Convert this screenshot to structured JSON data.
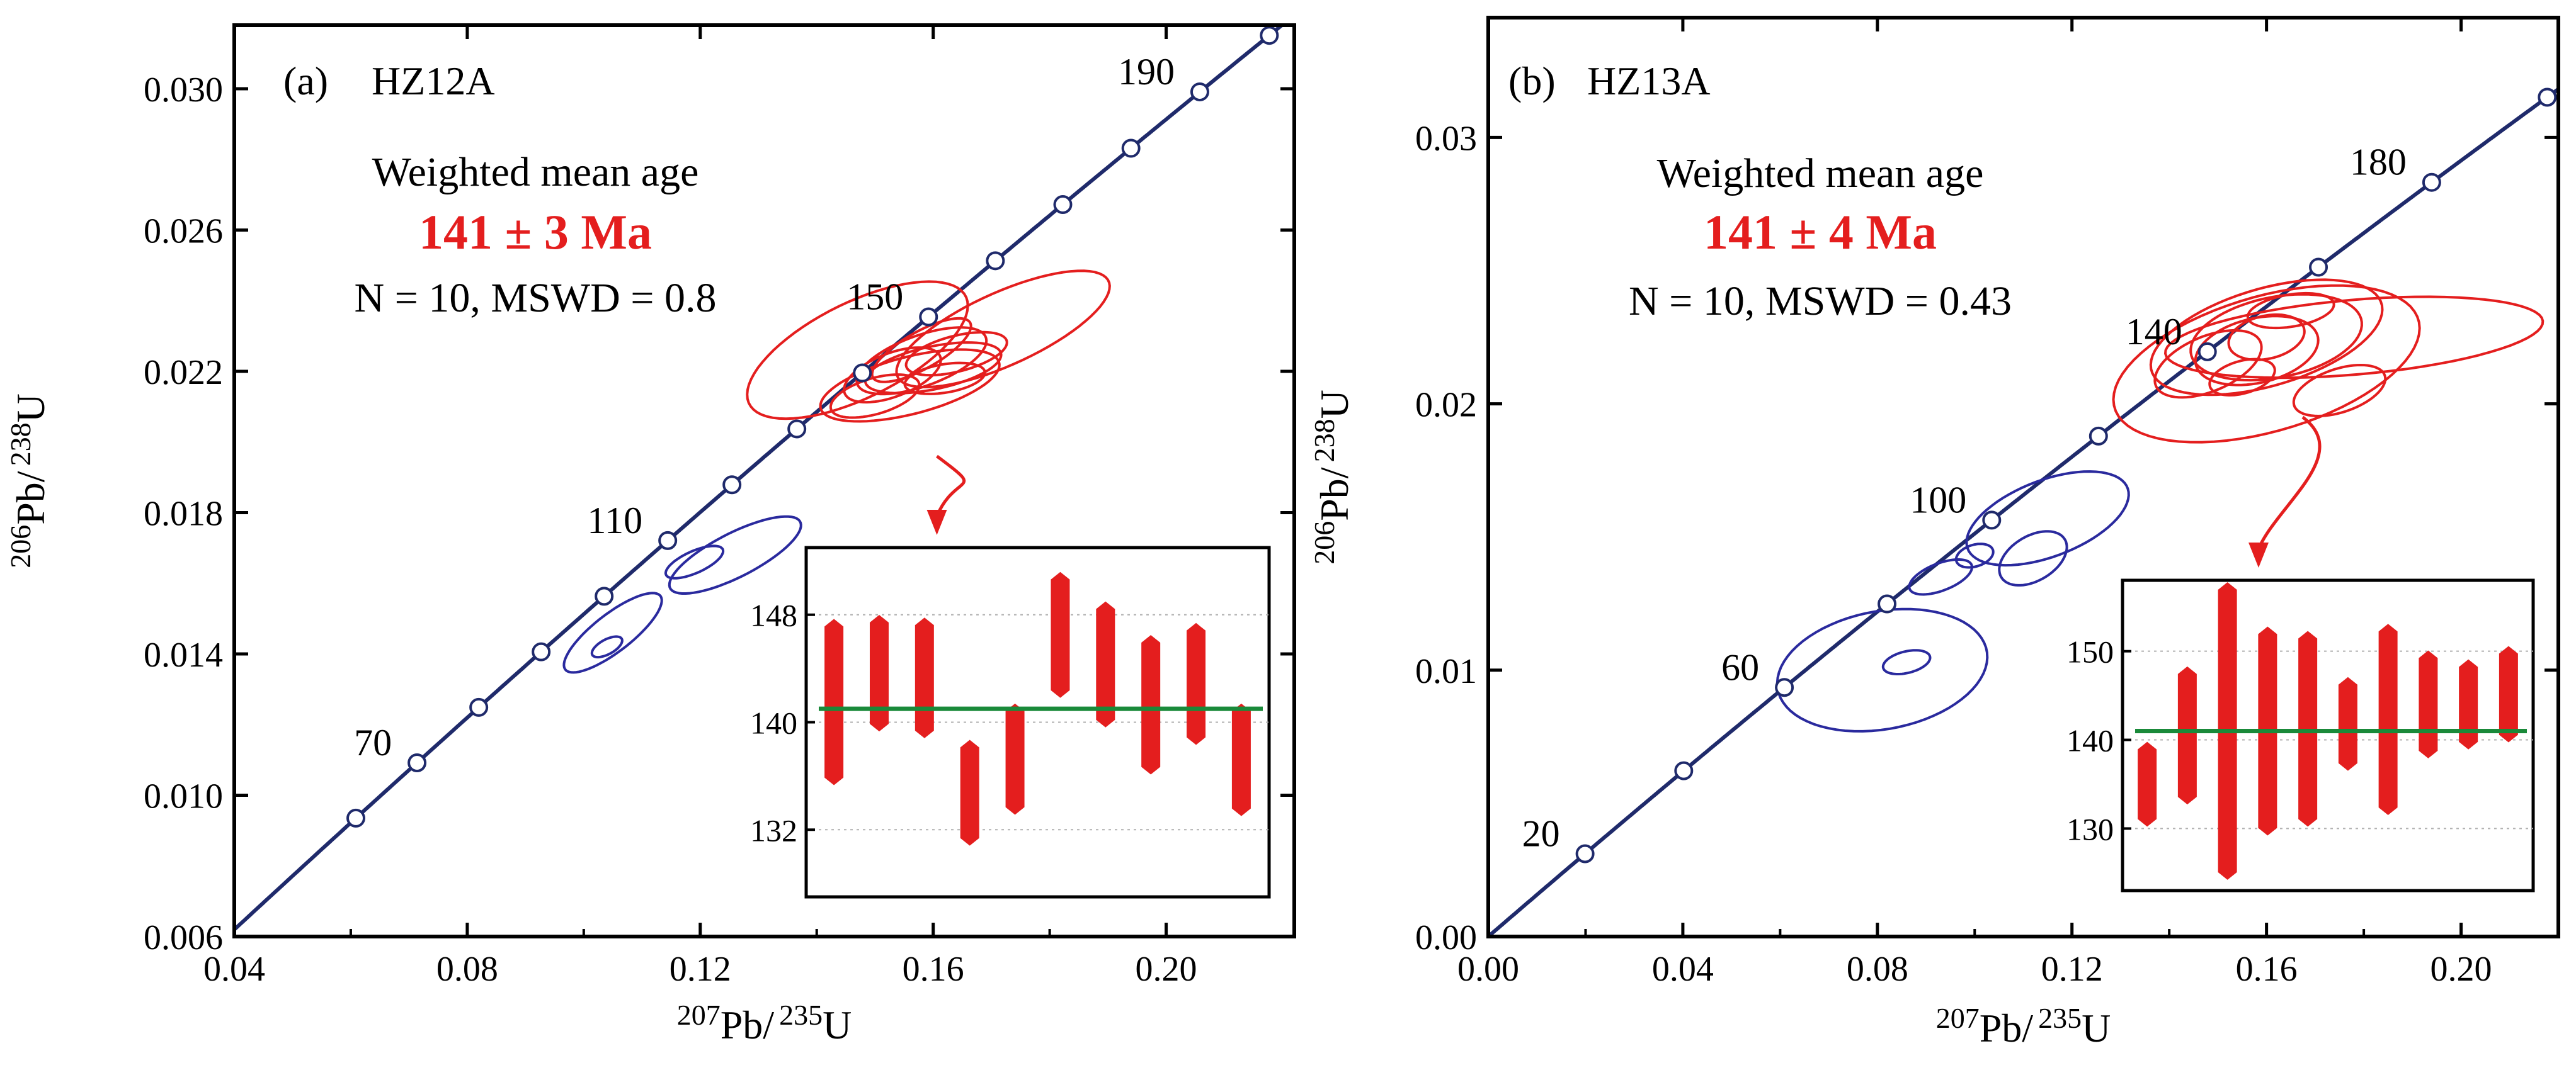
{
  "colors": {
    "concordia": "#1f2a6b",
    "concordia_marker": "#ffffff",
    "ellipse_red": "#e41e1e",
    "ellipse_blue": "#2a2a9e",
    "mean_line": "#1a8a3a",
    "bar": "#e41e1e",
    "age_text": "#e41e1e",
    "axis": "#000000",
    "grid": "#b0b0b0"
  },
  "chart_data": [
    {
      "type": "scatter",
      "panel_label": "(a)",
      "title": "HZ12A",
      "xlabel": {
        "sup1": "207",
        "base1": "Pb/",
        "sup2": "235",
        "base2": "U"
      },
      "ylabel": {
        "sup1": "206",
        "base1": "Pb/",
        "sup2": "238",
        "base2": "U"
      },
      "xlim": [
        0.04,
        0.222
      ],
      "ylim": [
        0.006,
        0.0318
      ],
      "xticks": [
        0.04,
        0.08,
        0.12,
        0.16,
        0.2
      ],
      "xtick_labels": [
        "0.04",
        "0.08",
        "0.12",
        "0.16",
        "0.20"
      ],
      "yticks": [
        0.006,
        0.01,
        0.014,
        0.018,
        0.022,
        0.026,
        0.03
      ],
      "ytick_labels": [
        "0.006",
        "0.010",
        "0.014",
        "0.018",
        "0.022",
        "0.026",
        "0.030"
      ],
      "annotation_title": "Weighted mean age",
      "annotation_age": "141 ± 3 Ma",
      "annotation_stats": "N = 10, MSWD = 0.8",
      "concordia_age_labels": [
        {
          "text": "70",
          "age": 70
        },
        {
          "text": "110",
          "age": 110
        },
        {
          "text": "150",
          "age": 150
        },
        {
          "text": "190",
          "age": 190
        }
      ],
      "concordia_age_range": [
        50,
        200
      ],
      "concordia_marker_step": 10,
      "ellipses_red": [
        {
          "cx": 0.147,
          "cy": 0.0226,
          "rx": 0.0215,
          "ry": 0.0013,
          "angle": 0.55
        },
        {
          "cx": 0.172,
          "cy": 0.0232,
          "rx": 0.0205,
          "ry": 0.001,
          "angle": 0.5
        },
        {
          "cx": 0.158,
          "cy": 0.0223,
          "rx": 0.012,
          "ry": 0.0007,
          "angle": 0.42
        },
        {
          "cx": 0.156,
          "cy": 0.0216,
          "rx": 0.016,
          "ry": 0.0008,
          "angle": 0.3
        },
        {
          "cx": 0.16,
          "cy": 0.0221,
          "rx": 0.012,
          "ry": 0.0006,
          "angle": 0.25
        },
        {
          "cx": 0.153,
          "cy": 0.0219,
          "rx": 0.009,
          "ry": 0.0006,
          "angle": 0.45
        },
        {
          "cx": 0.164,
          "cy": 0.0225,
          "rx": 0.009,
          "ry": 0.0005,
          "angle": 0.3
        },
        {
          "cx": 0.15,
          "cy": 0.0213,
          "rx": 0.008,
          "ry": 0.0005,
          "angle": 0.35
        },
        {
          "cx": 0.158,
          "cy": 0.0226,
          "rx": 0.01,
          "ry": 0.0005,
          "angle": 0.6
        },
        {
          "cx": 0.162,
          "cy": 0.0218,
          "rx": 0.007,
          "ry": 0.0004,
          "angle": 0.2
        }
      ],
      "ellipses_blue": [
        {
          "cx": 0.105,
          "cy": 0.0146,
          "rx": 0.011,
          "ry": 0.0005,
          "angle": 0.75
        },
        {
          "cx": 0.126,
          "cy": 0.0168,
          "rx": 0.013,
          "ry": 0.0006,
          "angle": 0.55
        },
        {
          "cx": 0.119,
          "cy": 0.0166,
          "rx": 0.0055,
          "ry": 0.0003,
          "angle": 0.5
        },
        {
          "cx": 0.104,
          "cy": 0.0142,
          "rx": 0.003,
          "ry": 0.0002,
          "angle": 0.6
        }
      ],
      "inset": {
        "ylim": [
          127,
          153
        ],
        "yticks": [
          132,
          140,
          148
        ],
        "ytick_labels": [
          "132",
          "140",
          "148"
        ],
        "mean": 141,
        "bars": [
          {
            "low": 135.5,
            "high": 147.5
          },
          {
            "low": 139.5,
            "high": 147.8
          },
          {
            "low": 139.0,
            "high": 147.6
          },
          {
            "low": 131.0,
            "high": 138.5
          },
          {
            "low": 133.3,
            "high": 141.2
          },
          {
            "low": 142.0,
            "high": 151.0
          },
          {
            "low": 139.8,
            "high": 148.8
          },
          {
            "low": 136.3,
            "high": 146.3
          },
          {
            "low": 138.5,
            "high": 147.2
          },
          {
            "low": 133.2,
            "high": 141.2
          }
        ]
      }
    },
    {
      "type": "scatter",
      "panel_label": "(b)",
      "title": "HZ13A",
      "xlabel": {
        "sup1": "207",
        "base1": "Pb/",
        "sup2": "235",
        "base2": "U"
      },
      "ylabel": {
        "sup1": "206",
        "base1": "Pb/",
        "sup2": "238",
        "base2": "U"
      },
      "xlim": [
        0.0,
        0.22
      ],
      "ylim": [
        0.0,
        0.0345
      ],
      "xticks": [
        0.0,
        0.04,
        0.08,
        0.12,
        0.16,
        0.2
      ],
      "xtick_labels": [
        "0.00",
        "0.04",
        "0.08",
        "0.12",
        "0.16",
        "0.20"
      ],
      "yticks": [
        0.0,
        0.01,
        0.02,
        0.03
      ],
      "ytick_labels": [
        "0.00",
        "0.01",
        "0.02",
        "0.03"
      ],
      "annotation_title": "Weighted mean age",
      "annotation_age": "141 ± 4 Ma",
      "annotation_stats": "N = 10, MSWD = 0.43",
      "concordia_age_labels": [
        {
          "text": "20",
          "age": 20
        },
        {
          "text": "60",
          "age": 60
        },
        {
          "text": "100",
          "age": 100
        },
        {
          "text": "140",
          "age": 140
        },
        {
          "text": "180",
          "age": 180
        }
      ],
      "concordia_age_range": [
        0,
        200
      ],
      "concordia_marker_step": 20,
      "ellipses_red": [
        {
          "cx": 0.16,
          "cy": 0.0215,
          "rx": 0.033,
          "ry": 0.0025,
          "angle": 0.35
        },
        {
          "cx": 0.178,
          "cy": 0.0225,
          "rx": 0.039,
          "ry": 0.0014,
          "angle": 0.1
        },
        {
          "cx": 0.16,
          "cy": 0.0225,
          "rx": 0.025,
          "ry": 0.0018,
          "angle": 0.35
        },
        {
          "cx": 0.162,
          "cy": 0.0225,
          "rx": 0.018,
          "ry": 0.0015,
          "angle": 0.25
        },
        {
          "cx": 0.158,
          "cy": 0.022,
          "rx": 0.013,
          "ry": 0.0012,
          "angle": 0.3
        },
        {
          "cx": 0.16,
          "cy": 0.0225,
          "rx": 0.008,
          "ry": 0.0008,
          "angle": 0.3
        },
        {
          "cx": 0.148,
          "cy": 0.0215,
          "rx": 0.012,
          "ry": 0.001,
          "angle": 0.5
        },
        {
          "cx": 0.175,
          "cy": 0.0205,
          "rx": 0.01,
          "ry": 0.0008,
          "angle": 0.4
        },
        {
          "cx": 0.165,
          "cy": 0.0235,
          "rx": 0.009,
          "ry": 0.0006,
          "angle": 0.2
        },
        {
          "cx": 0.155,
          "cy": 0.021,
          "rx": 0.007,
          "ry": 0.0006,
          "angle": 0.35
        }
      ],
      "ellipses_blue": [
        {
          "cx": 0.081,
          "cy": 0.01,
          "rx": 0.022,
          "ry": 0.0022,
          "angle": 0.25
        },
        {
          "cx": 0.086,
          "cy": 0.0103,
          "rx": 0.005,
          "ry": 0.0004,
          "angle": 0.3
        },
        {
          "cx": 0.115,
          "cy": 0.0157,
          "rx": 0.018,
          "ry": 0.0014,
          "angle": 0.45
        },
        {
          "cx": 0.112,
          "cy": 0.0142,
          "rx": 0.008,
          "ry": 0.0008,
          "angle": 0.7
        },
        {
          "cx": 0.093,
          "cy": 0.0135,
          "rx": 0.007,
          "ry": 0.0005,
          "angle": 0.45
        },
        {
          "cx": 0.1,
          "cy": 0.0143,
          "rx": 0.004,
          "ry": 0.0004,
          "angle": 0.4
        }
      ],
      "inset": {
        "ylim": [
          123,
          158
        ],
        "yticks": [
          130,
          140,
          150
        ],
        "ytick_labels": [
          "130",
          "140",
          "150"
        ],
        "mean": 141,
        "bars": [
          {
            "low": 130.5,
            "high": 139.5
          },
          {
            "low": 133.0,
            "high": 148.0
          },
          {
            "low": 124.5,
            "high": 157.5
          },
          {
            "low": 129.5,
            "high": 152.5
          },
          {
            "low": 130.5,
            "high": 152.0
          },
          {
            "low": 136.8,
            "high": 146.8
          },
          {
            "low": 131.8,
            "high": 152.8
          },
          {
            "low": 138.2,
            "high": 149.8
          },
          {
            "low": 139.2,
            "high": 148.8
          },
          {
            "low": 140.0,
            "high": 150.3
          }
        ]
      }
    }
  ]
}
